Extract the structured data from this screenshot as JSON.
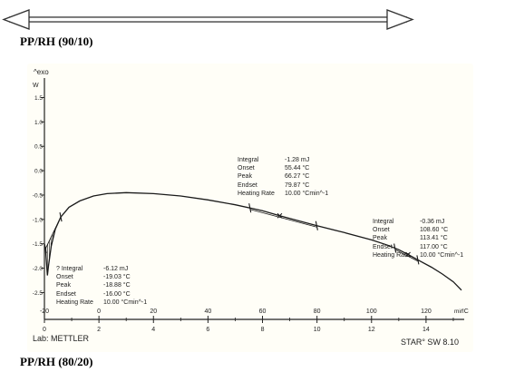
{
  "captions": {
    "top": "PP/RH (90/10)",
    "bottom": "PP/RH (80/20)"
  },
  "chart_data": {
    "type": "line",
    "y_axis_label": "^exo",
    "y_unit": "W",
    "y_tick_labels": [
      "1.5",
      "1.0",
      "0.5",
      "0.0",
      "-0.5",
      "-1.0",
      "-1.5",
      "-2.0",
      "-2.5"
    ],
    "y_ticks": [
      1.5,
      1.0,
      0.5,
      0.0,
      -0.5,
      -1.0,
      -1.5,
      -2.0,
      -2.5
    ],
    "temperature_tick_labels": [
      "-20",
      "0",
      "20",
      "40",
      "60",
      "80",
      "100",
      "120"
    ],
    "temperature_ticks": [
      -20,
      0,
      20,
      40,
      60,
      80,
      100,
      120
    ],
    "temperature_unit": "°C",
    "time_tick_labels": [
      "0",
      "2",
      "4",
      "6",
      "8",
      "10",
      "12",
      "14"
    ],
    "time_ticks": [
      0,
      2,
      4,
      6,
      8,
      10,
      12,
      14
    ],
    "time_unit": "min",
    "xlim": [
      -20,
      134
    ],
    "ylim": [
      -3.05,
      1.9
    ],
    "series": [
      {
        "x": [
          -19.6,
          -19.1,
          -18.9,
          -18.5,
          -17.5,
          -16,
          -14,
          -11,
          -7,
          -2,
          3,
          10,
          20,
          30,
          40,
          50,
          60,
          66,
          70,
          80,
          90,
          100,
          106,
          110,
          113.4,
          118,
          122,
          126,
          130,
          133
        ],
        "y": [
          -1.6,
          -2.0,
          -2.15,
          -1.95,
          -1.55,
          -1.2,
          -0.95,
          -0.75,
          -0.62,
          -0.52,
          -0.47,
          -0.45,
          -0.47,
          -0.52,
          -0.6,
          -0.7,
          -0.82,
          -0.92,
          -0.98,
          -1.13,
          -1.27,
          -1.42,
          -1.53,
          -1.62,
          -1.72,
          -1.86,
          -1.98,
          -2.12,
          -2.28,
          -2.45
        ]
      }
    ],
    "annotations": [
      {
        "rows": [
          [
            "? Integral",
            "-6.12 mJ"
          ],
          [
            "Onset",
            "-19.03 °C"
          ],
          [
            "Peak",
            "-18.88 °C"
          ],
          [
            "Endset",
            "-16.00 °C"
          ],
          [
            "Heating Rate",
            "10.00 °Cmin^-1"
          ]
        ]
      },
      {
        "rows": [
          [
            "Integral",
            "-1.28 mJ"
          ],
          [
            "Onset",
            "55.44 °C"
          ],
          [
            "Peak",
            "66.27 °C"
          ],
          [
            "Endset",
            "79.87 °C"
          ],
          [
            "Heating Rate",
            "10.00 °Cmin^-1"
          ]
        ]
      },
      {
        "rows": [
          [
            "Integral",
            "-0.36 mJ"
          ],
          [
            "Onset",
            "108.60 °C"
          ],
          [
            "Peak",
            "113.41 °C"
          ],
          [
            "Endset",
            "117.00 °C"
          ],
          [
            "Heating Rate",
            "10.00 °Cmin^-1"
          ]
        ]
      }
    ],
    "footer_left": "Lab: METTLER",
    "footer_right": "STAR° SW 8.10"
  },
  "colors": {
    "curve": "#1a1a1a",
    "axis": "#222222",
    "paper": "#fffef7"
  }
}
